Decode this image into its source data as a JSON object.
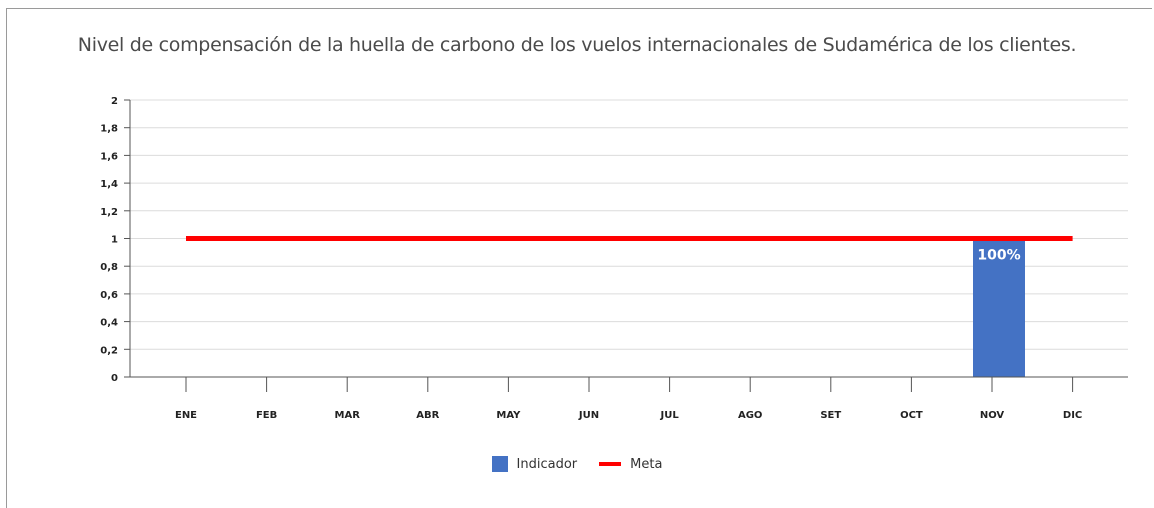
{
  "chart_data": {
    "type": "bar",
    "title": "Nivel de compensación de la huella de carbono de los vuelos internacionales de Sudamérica de los clientes.",
    "xlabel": "",
    "ylabel": "",
    "categories": [
      "ENE",
      "FEB",
      "MAR",
      "ABR",
      "MAY",
      "JUN",
      "JUL",
      "AGO",
      "SET",
      "OCT",
      "NOV",
      "DIC"
    ],
    "yticks": [
      "0",
      "0,2",
      "0,4",
      "0,6",
      "0,8",
      "1",
      "1,2",
      "1,4",
      "1,6",
      "1,8",
      "2"
    ],
    "ylim": [
      0,
      2
    ],
    "grid": true,
    "legend_position": "bottom",
    "series": [
      {
        "name": "Indicador",
        "kind": "bar",
        "color": "#4472c4",
        "values": [
          null,
          null,
          null,
          null,
          null,
          null,
          null,
          null,
          null,
          null,
          1,
          null
        ],
        "labels": [
          null,
          null,
          null,
          null,
          null,
          null,
          null,
          null,
          null,
          null,
          "100%",
          null
        ]
      },
      {
        "name": "Meta",
        "kind": "line",
        "color": "#ff0000",
        "values": [
          1,
          1,
          1,
          1,
          1,
          1,
          1,
          1,
          1,
          1,
          1,
          1
        ]
      }
    ]
  }
}
